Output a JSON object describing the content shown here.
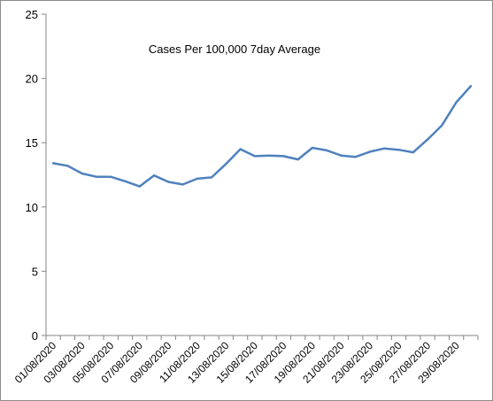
{
  "chart_data": {
    "type": "line",
    "title": "Cases Per 100,000 7day Average",
    "xlabel": "",
    "ylabel": "",
    "ylim": [
      0,
      25
    ],
    "yticks": [
      0,
      5,
      10,
      15,
      20,
      25
    ],
    "grid": false,
    "legend": "none",
    "line_color": "#4f81bd",
    "x": [
      "01/08/2020",
      "02/08/2020",
      "03/08/2020",
      "04/08/2020",
      "05/08/2020",
      "06/08/2020",
      "07/08/2020",
      "08/08/2020",
      "09/08/2020",
      "10/08/2020",
      "11/08/2020",
      "12/08/2020",
      "13/08/2020",
      "14/08/2020",
      "15/08/2020",
      "16/08/2020",
      "17/08/2020",
      "18/08/2020",
      "19/08/2020",
      "20/08/2020",
      "21/08/2020",
      "22/08/2020",
      "23/08/2020",
      "24/08/2020",
      "25/08/2020",
      "26/08/2020",
      "27/08/2020",
      "28/08/2020",
      "29/08/2020",
      "30/08/2020"
    ],
    "x_tick_labels": [
      "01/08/2020",
      "03/08/2020",
      "05/08/2020",
      "07/08/2020",
      "09/08/2020",
      "11/08/2020",
      "13/08/2020",
      "15/08/2020",
      "17/08/2020",
      "19/08/2020",
      "21/08/2020",
      "23/08/2020",
      "25/08/2020",
      "27/08/2020",
      "29/08/2020"
    ],
    "series": [
      {
        "values": [
          13.4,
          13.2,
          12.6,
          12.35,
          12.35,
          12.0,
          11.6,
          12.45,
          11.95,
          11.75,
          12.2,
          12.3,
          13.35,
          14.5,
          13.95,
          14.0,
          13.95,
          13.7,
          14.6,
          14.4,
          14.0,
          13.9,
          14.3,
          14.55,
          14.45,
          14.25,
          15.25,
          16.35,
          18.15,
          19.4
        ]
      }
    ]
  }
}
